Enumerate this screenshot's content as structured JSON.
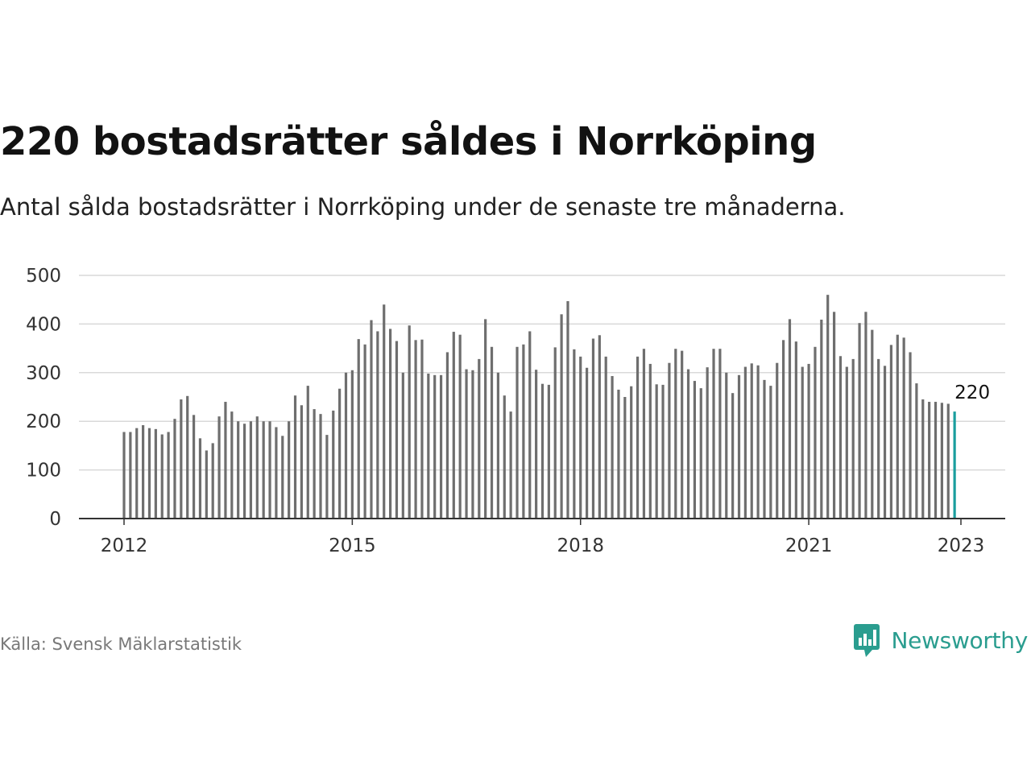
{
  "header": {
    "title": "220 bostadsrätter såldes i Norrköping",
    "subtitle": "Antal sålda bostadsrätter i Norrköping under de senaste tre månaderna."
  },
  "footer": {
    "source": "Källa: Svensk Mäklarstatistik",
    "brand": "Newsworthy"
  },
  "colors": {
    "bar": "#6e6e6e",
    "highlight": "#1a9e9e",
    "grid": "#d9d9d9",
    "axis": "#333333",
    "brand": "#2a9d8f"
  },
  "icons": {
    "brand_logo": "newsworthy-logo-icon"
  },
  "chart_data": {
    "type": "bar",
    "title": "220 bostadsrätter såldes i Norrköping",
    "subtitle": "Antal sålda bostadsrätter i Norrköping under de senaste tre månaderna.",
    "x_start": "2012-01",
    "x_end": "2023-01",
    "x_ticks": [
      "2012",
      "2015",
      "2018",
      "2021",
      "2023"
    ],
    "y_ticks": [
      0,
      100,
      200,
      300,
      400,
      500
    ],
    "ylim": [
      0,
      500
    ],
    "grid": true,
    "highlight_label": "220",
    "values": [
      178,
      178,
      186,
      192,
      186,
      184,
      173,
      178,
      205,
      245,
      252,
      213,
      165,
      140,
      155,
      210,
      240,
      220,
      200,
      195,
      200,
      210,
      200,
      200,
      188,
      170,
      200,
      253,
      233,
      273,
      225,
      215,
      172,
      222,
      267,
      300,
      305,
      369,
      358,
      408,
      385,
      440,
      390,
      365,
      300,
      397,
      367,
      368,
      298,
      295,
      295,
      342,
      384,
      378,
      307,
      305,
      328,
      410,
      353,
      300,
      253,
      220,
      353,
      358,
      385,
      306,
      277,
      275,
      352,
      420,
      447,
      348,
      333,
      310,
      370,
      377,
      333,
      293,
      265,
      250,
      272,
      333,
      349,
      318,
      276,
      275,
      320,
      349,
      345,
      307,
      283,
      268,
      311,
      349,
      349,
      300,
      258,
      295,
      312,
      319,
      315,
      285,
      273,
      320,
      367,
      410,
      364,
      312,
      318,
      353,
      409,
      460,
      425,
      334,
      312,
      328,
      402,
      425,
      388,
      328,
      314,
      357,
      378,
      372,
      342,
      278,
      245,
      240,
      240,
      238,
      236,
      220
    ]
  }
}
